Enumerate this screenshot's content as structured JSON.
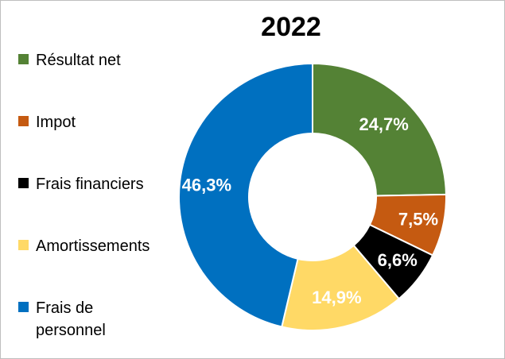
{
  "chart_data": {
    "type": "pie",
    "title": "2022",
    "donut": true,
    "legend_position": "left",
    "categories": [
      "Résultat net",
      "Impot",
      "Frais financiers",
      "Amortissements",
      "Frais de personnel"
    ],
    "values": [
      24.7,
      7.5,
      6.6,
      14.9,
      46.3
    ],
    "data_labels": [
      "24,7%",
      "7,5%",
      "6,6%",
      "14,9%",
      "46,3%"
    ],
    "colors": [
      "#548235",
      "#C55A11",
      "#000000",
      "#FFD966",
      "#0070C0"
    ]
  }
}
